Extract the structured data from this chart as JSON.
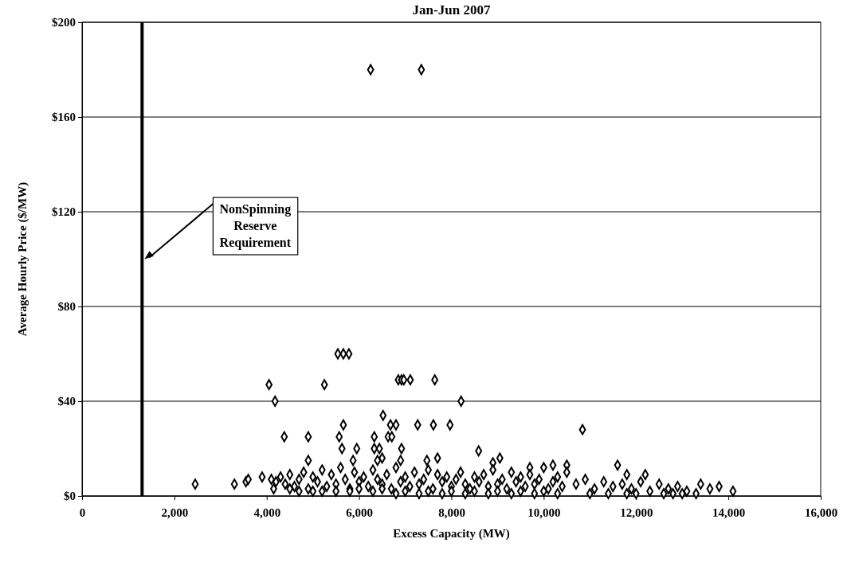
{
  "chart_data": {
    "type": "scatter",
    "title": "Jan-Jun 2007",
    "xlabel": "Excess Capacity (MW)",
    "ylabel": "Average Hourly Price ($/MW)",
    "xlim": [
      0,
      16000
    ],
    "xticks": [
      {
        "value": 0,
        "label": "0"
      },
      {
        "value": 2000,
        "label": "2,000"
      },
      {
        "value": 4000,
        "label": "4,000"
      },
      {
        "value": 6000,
        "label": "6,000"
      },
      {
        "value": 8000,
        "label": "8,000"
      },
      {
        "value": 10000,
        "label": "10,000"
      },
      {
        "value": 12000,
        "label": "12,000"
      },
      {
        "value": 14000,
        "label": "14,000"
      },
      {
        "value": 16000,
        "label": "16,000"
      }
    ],
    "ylim": [
      0,
      200
    ],
    "yticks": [
      {
        "value": 0,
        "label": "$0"
      },
      {
        "value": 40,
        "label": "$40"
      },
      {
        "value": 80,
        "label": "$80"
      },
      {
        "value": 120,
        "label": "$120"
      },
      {
        "value": 160,
        "label": "$160"
      },
      {
        "value": 200,
        "label": "$200"
      }
    ],
    "grid": "y",
    "marker": "diamond",
    "ref_lines": [
      {
        "axis": "x",
        "value": 1300,
        "label": "NonSpinning Reserve Requirement",
        "color": "#000000"
      }
    ],
    "series": [
      {
        "color": "#000000",
        "x": [
          6250,
          7350,
          5540,
          5660,
          5780,
          6850,
          6920,
          6970,
          7110,
          7640,
          4050,
          5250,
          4180,
          8210,
          6520,
          5660,
          6680,
          6800,
          7270,
          7610,
          7970,
          10840,
          4380,
          4900,
          5570,
          6330,
          6630,
          6710,
          5630,
          5950,
          6330,
          6440,
          6920,
          8590,
          4900,
          5870,
          6400,
          6500,
          6900,
          7470,
          7700,
          8900,
          9050,
          9700,
          10200,
          10500,
          11600,
          11800,
          12200,
          2450,
          3300,
          3550,
          3600,
          3900,
          4100,
          4150,
          4200,
          4300,
          4400,
          4500,
          4600,
          4700,
          4800,
          4900,
          5000,
          5100,
          5200,
          5300,
          5400,
          5500,
          5600,
          5700,
          5800,
          5900,
          6000,
          6100,
          6200,
          6300,
          6400,
          6500,
          6600,
          6700,
          6800,
          6900,
          7000,
          7100,
          7200,
          7300,
          7400,
          7500,
          7600,
          7700,
          7800,
          7900,
          8000,
          8100,
          8200,
          8300,
          8400,
          8500,
          8600,
          8700,
          8800,
          8900,
          9000,
          9100,
          9200,
          9300,
          9400,
          9500,
          9600,
          9700,
          9800,
          9900,
          10000,
          10100,
          10200,
          10300,
          10400,
          10500,
          10700,
          10900,
          11100,
          11300,
          11500,
          11700,
          11900,
          12100,
          12300,
          12500,
          12700,
          12900,
          13100,
          13400,
          13600,
          13800,
          14100,
          4500,
          5000,
          5500,
          6000,
          6500,
          7000,
          7500,
          8000,
          8500,
          9000,
          9500,
          10000,
          4700,
          5200,
          5800,
          6300,
          6800,
          7300,
          7800,
          8300,
          8800,
          9300,
          9800,
          10300,
          11000,
          11800,
          12600,
          13000,
          11400,
          12000,
          12800,
          13300
        ],
        "values": [
          180,
          180,
          60,
          60,
          60,
          49,
          49,
          49,
          49,
          49,
          47,
          47,
          40,
          40,
          34,
          30,
          30,
          30,
          30,
          30,
          30,
          28,
          25,
          25,
          25,
          25,
          25,
          25,
          20,
          20,
          20,
          20,
          20,
          19,
          15,
          15,
          15,
          16,
          15,
          15,
          16,
          14,
          16,
          12,
          13,
          13,
          13,
          9,
          9,
          5,
          5,
          6,
          7,
          8,
          7,
          3,
          6,
          8,
          5,
          9,
          4,
          7,
          10,
          3,
          8,
          6,
          11,
          4,
          9,
          5,
          12,
          7,
          3,
          10,
          6,
          8,
          4,
          11,
          7,
          5,
          9,
          3,
          12,
          6,
          8,
          4,
          10,
          5,
          7,
          11,
          3,
          9,
          6,
          8,
          4,
          7,
          10,
          5,
          3,
          8,
          6,
          9,
          4,
          11,
          5,
          7,
          3,
          10,
          6,
          8,
          4,
          9,
          5,
          7,
          12,
          3,
          6,
          8,
          4,
          10,
          5,
          7,
          3,
          6,
          4,
          5,
          3,
          6,
          2,
          5,
          3,
          4,
          2,
          5,
          3,
          4,
          2,
          3,
          2,
          2,
          3,
          3,
          2,
          2,
          2,
          2,
          2,
          2,
          2,
          2,
          2,
          2,
          2,
          1,
          1,
          1,
          1,
          1,
          1,
          1,
          1,
          1,
          1,
          1,
          1,
          1,
          1,
          1,
          1
        ]
      }
    ]
  }
}
